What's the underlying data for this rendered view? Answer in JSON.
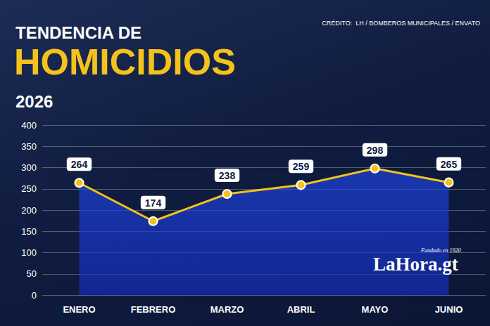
{
  "chart_data": {
    "type": "line",
    "pretitle": "TENDENCIA DE",
    "title": "HOMICIDIOS",
    "subtitle": "2026",
    "annotations": [
      "CRÉDITO:  LH / BOMBEROS MUNICIPALES / ENVATO",
      "LaHora.gt",
      "Fundado en 1920"
    ],
    "categories": [
      "ENERO",
      "FEBRERO",
      "MARZO",
      "ABRIL",
      "MAYO",
      "JUNIO"
    ],
    "values": [
      264,
      174,
      238,
      259,
      298,
      265
    ],
    "color": "#f5c21b",
    "ylim": [
      0,
      400
    ],
    "yticks": [
      0,
      50,
      100,
      150,
      200,
      250,
      300,
      350,
      400
    ],
    "grid": true,
    "data_labels": true
  }
}
